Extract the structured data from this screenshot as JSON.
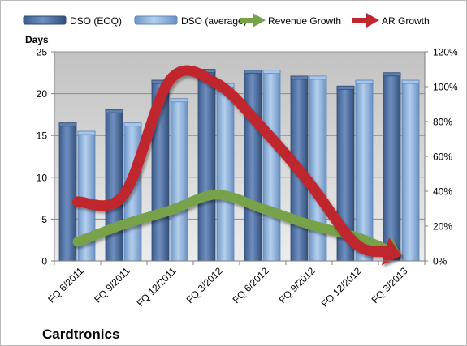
{
  "chart_data": {
    "type": "bar",
    "title": "",
    "company_label": "Cardtronics",
    "categories": [
      "FQ 6/2011",
      "FQ 9/2011",
      "FQ 12/2011",
      "FQ 3/2012",
      "FQ 6/2012",
      "FQ 9/2012",
      "FQ 12/2012",
      "FQ 3/2013"
    ],
    "left_axis": {
      "title": "Days",
      "ylim": [
        0,
        25
      ],
      "ticks": [
        "0",
        "5",
        "10",
        "15",
        "20",
        "25"
      ]
    },
    "right_axis": {
      "title": "",
      "ylim": [
        0,
        120
      ],
      "ticks": [
        "0%",
        "20%",
        "40%",
        "60%",
        "80%",
        "100%",
        "120%"
      ]
    },
    "series": [
      {
        "name": "DSO (EOQ)",
        "kind": "bar",
        "axis": "left",
        "color": "#4f6f9f",
        "values": [
          16.5,
          18.1,
          21.6,
          22.9,
          22.8,
          22.1,
          20.9,
          22.5
        ]
      },
      {
        "name": "DSO (average)",
        "kind": "bar",
        "axis": "left",
        "color": "#8fb4e0",
        "values": [
          15.5,
          16.5,
          19.4,
          21.2,
          22.8,
          22.1,
          21.6,
          21.6
        ]
      },
      {
        "name": "Revenue Growth",
        "kind": "arrow-line",
        "axis": "right",
        "color": "#77a24a",
        "values": [
          11,
          21,
          29,
          38,
          30,
          21,
          14,
          3
        ]
      },
      {
        "name": "AR Growth",
        "kind": "arrow-line",
        "axis": "right",
        "color": "#c0262d",
        "values": [
          34,
          38,
          104,
          102,
          76,
          45,
          10,
          3
        ]
      }
    ],
    "grid": true,
    "legend_position": "top"
  }
}
